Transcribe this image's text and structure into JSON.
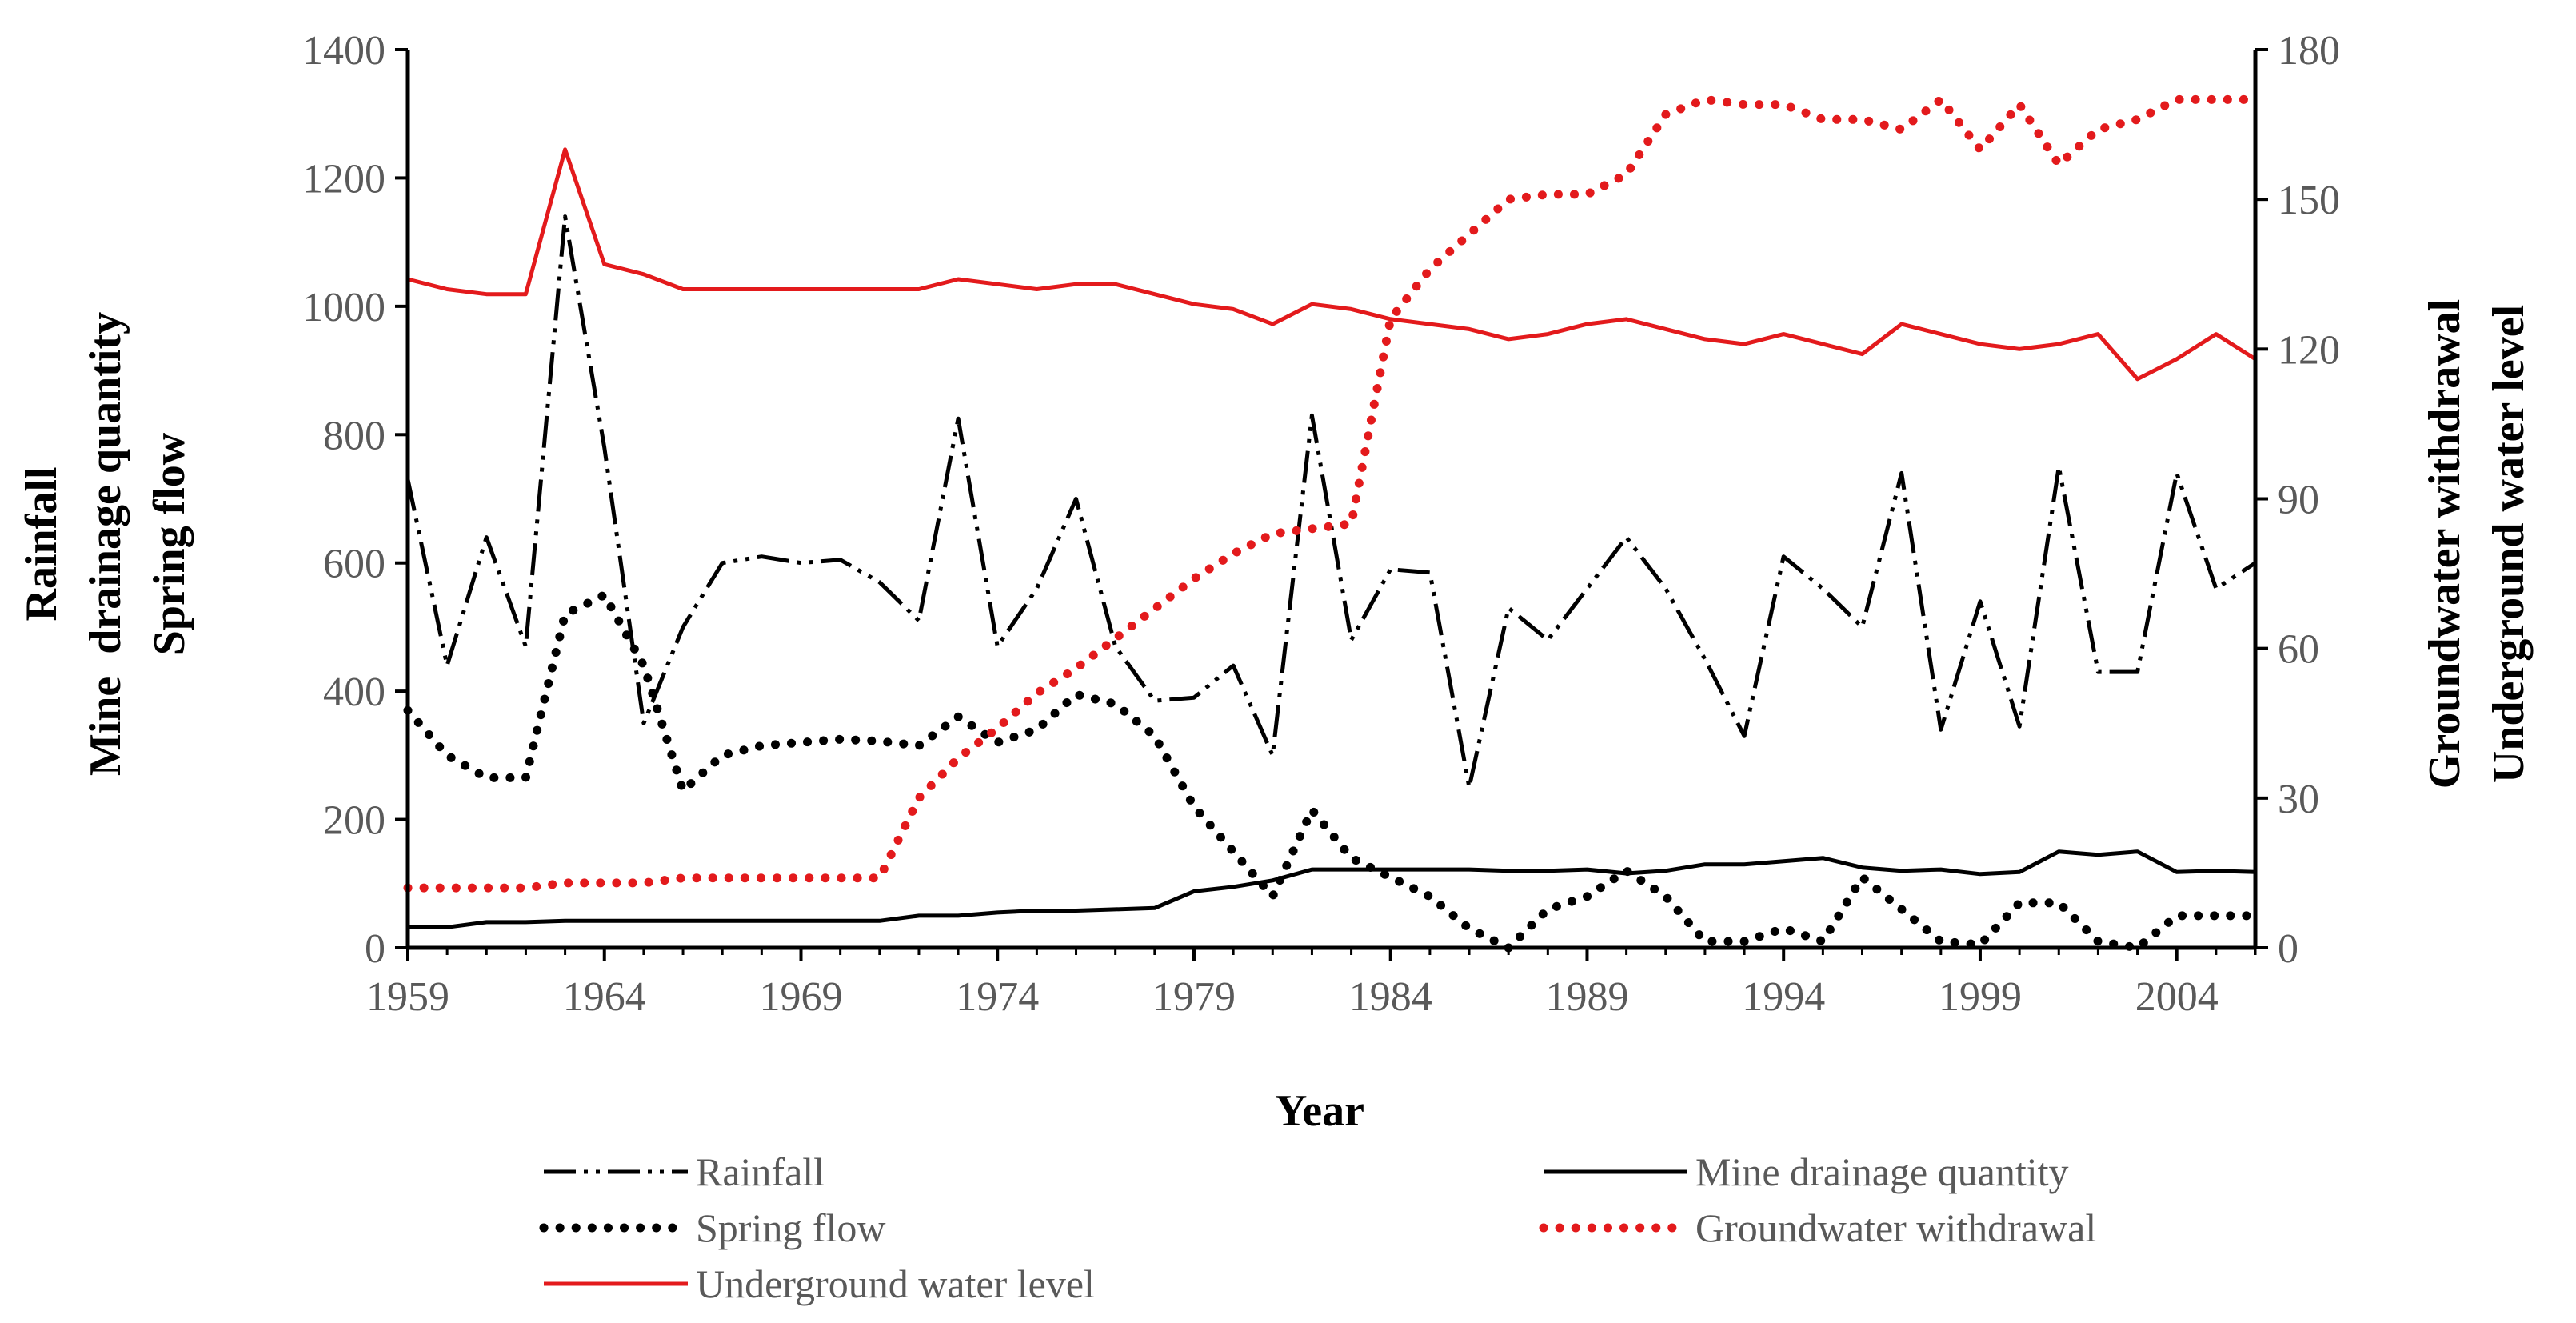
{
  "chart_data": {
    "type": "line",
    "x_label": "Year",
    "y_left_labels": [
      "Rainfall",
      "Mine  drainage quantity",
      "Spring flow"
    ],
    "y_right_labels": [
      "Groundwater withdrawal",
      "Underground water level"
    ],
    "x_ticks": [
      1959,
      1964,
      1969,
      1974,
      1979,
      1984,
      1989,
      1994,
      1999,
      2004
    ],
    "x_range": [
      1959,
      2006
    ],
    "y_left_range": [
      0,
      1400
    ],
    "y_left_ticks": [
      0,
      200,
      400,
      600,
      800,
      1000,
      1200,
      1400
    ],
    "y_right_range": [
      0,
      180
    ],
    "y_right_ticks": [
      0,
      30,
      60,
      90,
      120,
      150,
      180
    ],
    "years": [
      1959,
      1960,
      1961,
      1962,
      1963,
      1964,
      1965,
      1966,
      1967,
      1968,
      1969,
      1970,
      1971,
      1972,
      1973,
      1974,
      1975,
      1976,
      1977,
      1978,
      1979,
      1980,
      1981,
      1982,
      1983,
      1984,
      1985,
      1986,
      1987,
      1988,
      1989,
      1990,
      1991,
      1992,
      1993,
      1994,
      1995,
      1996,
      1997,
      1998,
      1999,
      2000,
      2001,
      2002,
      2003,
      2004,
      2005,
      2006
    ],
    "series": [
      {
        "name": "Rainfall",
        "axis": "left",
        "color": "#000000",
        "style": "dashdotdot",
        "values": [
          730,
          440,
          640,
          470,
          1140,
          780,
          350,
          500,
          600,
          610,
          600,
          605,
          570,
          510,
          825,
          470,
          560,
          700,
          470,
          385,
          390,
          440,
          300,
          830,
          480,
          590,
          585,
          250,
          530,
          480,
          560,
          640,
          560,
          450,
          330,
          610,
          560,
          500,
          740,
          340,
          540,
          345,
          750,
          430,
          430,
          740,
          560,
          600
        ]
      },
      {
        "name": "Mine drainage quantity",
        "axis": "left",
        "color": "#000000",
        "style": "solid",
        "values": [
          32,
          32,
          40,
          40,
          42,
          42,
          42,
          42,
          42,
          42,
          42,
          42,
          42,
          50,
          50,
          55,
          58,
          58,
          60,
          62,
          88,
          95,
          105,
          122,
          122,
          122,
          122,
          122,
          120,
          120,
          122,
          116,
          120,
          130,
          130,
          135,
          140,
          125,
          120,
          122,
          115,
          118,
          150,
          145,
          150,
          118,
          120,
          118
        ]
      },
      {
        "name": "Spring flow",
        "axis": "left",
        "color": "#000000",
        "style": "dotted",
        "values": [
          370,
          300,
          265,
          265,
          520,
          550,
          440,
          245,
          300,
          315,
          320,
          325,
          322,
          315,
          360,
          320,
          340,
          395,
          380,
          330,
          220,
          150,
          80,
          215,
          140,
          110,
          80,
          30,
          0,
          60,
          80,
          120,
          80,
          10,
          10,
          30,
          10,
          110,
          60,
          10,
          5,
          70,
          70,
          10,
          0,
          50,
          50,
          50
        ]
      },
      {
        "name": "Groundwater withdrawal",
        "axis": "right",
        "color": "#e31a1c",
        "style": "dotted",
        "values": [
          12,
          12,
          12,
          12,
          13,
          13,
          13,
          14,
          14,
          14,
          14,
          14,
          14,
          30,
          38,
          44,
          51,
          56,
          62,
          68,
          74,
          79,
          83,
          84,
          85,
          126,
          136,
          143,
          150,
          151,
          151,
          155,
          167,
          170,
          169,
          169,
          166,
          166,
          164,
          170,
          160,
          169,
          157,
          164,
          166,
          170,
          170,
          170
        ]
      },
      {
        "name": "Underground water level",
        "axis": "right",
        "color": "#e31a1c",
        "style": "solid",
        "values": [
          134,
          132,
          131,
          131,
          160,
          137,
          135,
          132,
          132,
          132,
          132,
          132,
          132,
          132,
          134,
          133,
          132,
          133,
          133,
          131,
          129,
          128,
          125,
          129,
          128,
          126,
          125,
          124,
          122,
          123,
          125,
          126,
          124,
          122,
          121,
          123,
          121,
          119,
          125,
          123,
          121,
          120,
          121,
          123,
          114,
          118,
          123,
          118
        ]
      }
    ],
    "legend": [
      {
        "label": "Rainfall",
        "style": "dashdotdot",
        "color": "#000000"
      },
      {
        "label": "Mine drainage quantity",
        "style": "solid",
        "color": "#000000"
      },
      {
        "label": "Spring flow",
        "style": "dotted",
        "color": "#000000"
      },
      {
        "label": "Groundwater withdrawal",
        "style": "dotted",
        "color": "#e31a1c"
      },
      {
        "label": "Underground water level",
        "style": "solid",
        "color": "#e31a1c"
      }
    ]
  }
}
